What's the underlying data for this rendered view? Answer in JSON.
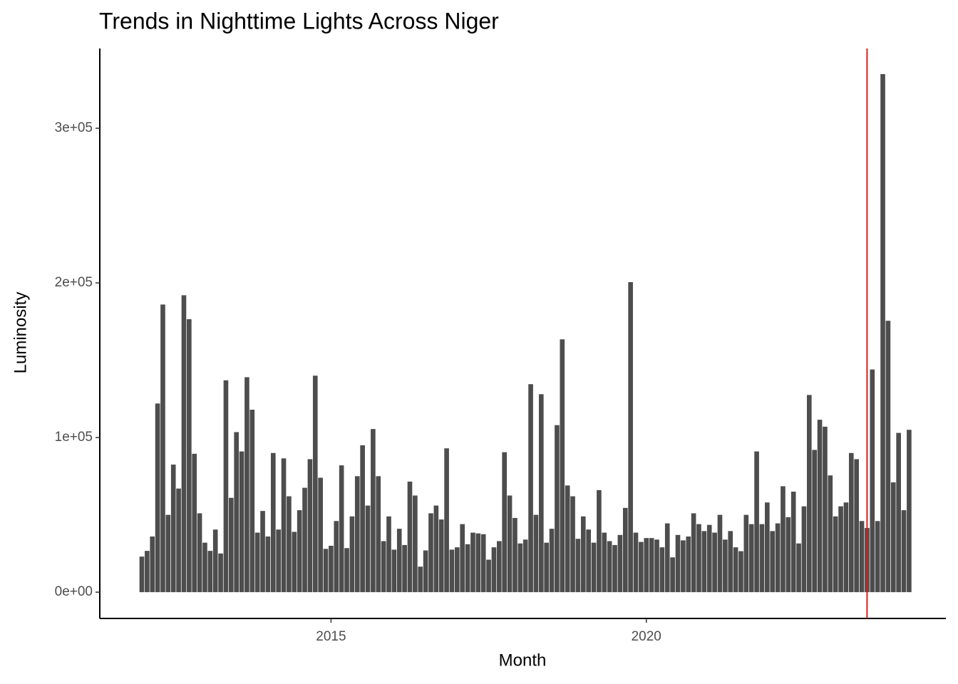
{
  "chart_data": {
    "type": "bar",
    "title": "Trends in Nighttime Lights Across Niger",
    "x_label": "Month",
    "y_label": "Luminosity",
    "x": [
      "2012-01",
      "2012-02",
      "2012-03",
      "2012-04",
      "2012-05",
      "2012-06",
      "2012-07",
      "2012-08",
      "2012-09",
      "2012-10",
      "2012-11",
      "2012-12",
      "2013-01",
      "2013-02",
      "2013-03",
      "2013-04",
      "2013-05",
      "2013-06",
      "2013-07",
      "2013-08",
      "2013-09",
      "2013-10",
      "2013-11",
      "2013-12",
      "2014-01",
      "2014-02",
      "2014-03",
      "2014-04",
      "2014-05",
      "2014-06",
      "2014-07",
      "2014-08",
      "2014-09",
      "2014-10",
      "2014-11",
      "2014-12",
      "2015-01",
      "2015-02",
      "2015-03",
      "2015-04",
      "2015-05",
      "2015-06",
      "2015-07",
      "2015-08",
      "2015-09",
      "2015-10",
      "2015-11",
      "2015-12",
      "2016-01",
      "2016-02",
      "2016-03",
      "2016-04",
      "2016-05",
      "2016-06",
      "2016-07",
      "2016-08",
      "2016-09",
      "2016-10",
      "2016-11",
      "2016-12",
      "2017-01",
      "2017-02",
      "2017-03",
      "2017-04",
      "2017-05",
      "2017-06",
      "2017-07",
      "2017-08",
      "2017-09",
      "2017-10",
      "2017-11",
      "2017-12",
      "2018-01",
      "2018-02",
      "2018-03",
      "2018-04",
      "2018-05",
      "2018-06",
      "2018-07",
      "2018-08",
      "2018-09",
      "2018-10",
      "2018-11",
      "2018-12",
      "2019-01",
      "2019-02",
      "2019-03",
      "2019-04",
      "2019-05",
      "2019-06",
      "2019-07",
      "2019-08",
      "2019-09",
      "2019-10",
      "2019-11",
      "2019-12",
      "2020-01",
      "2020-02",
      "2020-03",
      "2020-04",
      "2020-05",
      "2020-06",
      "2020-07",
      "2020-08",
      "2020-09",
      "2020-10",
      "2020-11",
      "2020-12",
      "2021-01",
      "2021-02",
      "2021-03",
      "2021-04",
      "2021-05",
      "2021-06",
      "2021-07",
      "2021-08",
      "2021-09",
      "2021-10",
      "2021-11",
      "2021-12",
      "2022-01",
      "2022-02",
      "2022-03",
      "2022-04",
      "2022-05",
      "2022-06",
      "2022-07",
      "2022-08",
      "2022-09",
      "2022-10",
      "2022-11",
      "2022-12",
      "2023-01",
      "2023-02",
      "2023-03",
      "2023-04",
      "2023-05",
      "2023-06",
      "2023-07",
      "2023-08",
      "2023-09",
      "2023-10",
      "2023-11",
      "2023-12",
      "2024-01",
      "2024-02",
      "2024-03"
    ],
    "values": [
      23000,
      26700,
      36000,
      122000,
      186000,
      50000,
      82500,
      67000,
      192000,
      176500,
      89500,
      51000,
      32000,
      26700,
      40500,
      25000,
      137000,
      61000,
      103500,
      91000,
      139000,
      118000,
      38500,
      52500,
      36000,
      90000,
      40500,
      86500,
      62000,
      39000,
      53000,
      67500,
      86000,
      140000,
      74000,
      28000,
      30000,
      46000,
      82000,
      28500,
      49000,
      75000,
      95000,
      56000,
      105500,
      75000,
      33000,
      49000,
      27500,
      41000,
      30500,
      71500,
      62500,
      16500,
      27000,
      51000,
      56000,
      47000,
      93000,
      27500,
      29000,
      44000,
      31000,
      38500,
      38000,
      37500,
      21000,
      29000,
      33000,
      90500,
      62500,
      48000,
      31500,
      34000,
      134500,
      50000,
      128000,
      32000,
      41000,
      108000,
      163500,
      69000,
      62000,
      34500,
      49000,
      40500,
      32000,
      66000,
      38500,
      33000,
      30500,
      37000,
      54500,
      200500,
      38500,
      32500,
      35000,
      35000,
      34000,
      29000,
      44500,
      22500,
      37000,
      33500,
      36000,
      51000,
      44000,
      39500,
      43500,
      38500,
      50000,
      34000,
      39500,
      29000,
      26500,
      50000,
      44000,
      91000,
      44000,
      58000,
      39500,
      44500,
      68500,
      48500,
      65000,
      31500,
      55500,
      127500,
      92000,
      111500,
      107000,
      75500,
      49000,
      55500,
      58000,
      90000,
      86000,
      46000,
      41500,
      144000,
      46000,
      335000,
      175500,
      71000,
      103000,
      53000,
      105000
    ],
    "color": "#4d4d4d",
    "vline": {
      "x": "2023-07",
      "color": "#e41a1c"
    },
    "xlim": [
      "2011-05",
      "2024-10"
    ],
    "xticks": [
      "2015",
      "2020"
    ],
    "ylim": [
      -17000,
      351600
    ],
    "yticks": [
      {
        "value": 0,
        "label": "0e+00"
      },
      {
        "value": 100000,
        "label": "1e+05"
      },
      {
        "value": 200000,
        "label": "2e+05"
      },
      {
        "value": 300000,
        "label": "3e+05"
      }
    ],
    "grid": false
  }
}
